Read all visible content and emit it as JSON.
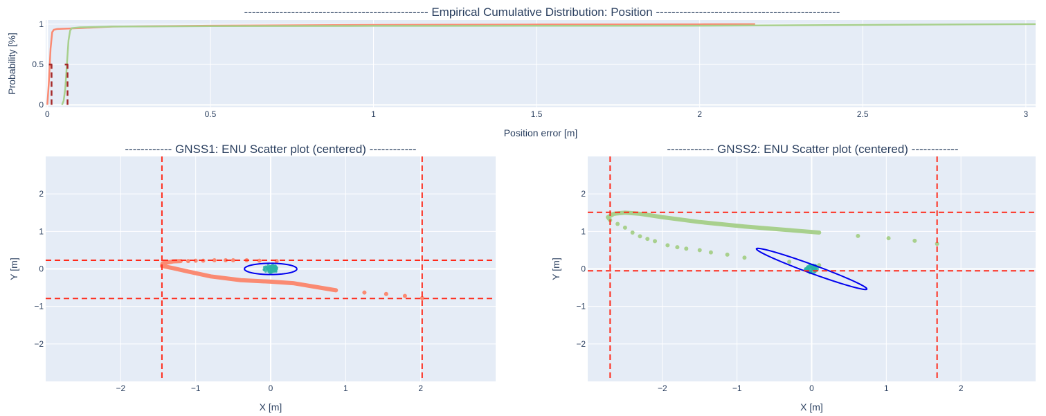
{
  "chart_data": [
    {
      "type": "line",
      "title": "-----------------------------------------------  Empirical Cumulative Distribution: Position  -----------------------------------------------",
      "xlabel": "Position error [m]",
      "ylabel": "Probability [%]",
      "xlim": [
        -0.005,
        3.03
      ],
      "ylim": [
        -0.03,
        1.05
      ],
      "xticks": [
        0,
        0.5,
        1,
        1.5,
        2,
        2.5,
        3
      ],
      "xtick_labels": [
        "0",
        "0.5",
        "1",
        "1.5",
        "2",
        "2.5",
        "3"
      ],
      "yticks": [
        0,
        0.5,
        1
      ],
      "ytick_labels": [
        "0",
        "0.5",
        "1"
      ],
      "series": [
        {
          "name": "GNSS1",
          "color": "#fa8a72",
          "x": [
            0,
            0.005,
            0.01,
            0.015,
            0.02,
            0.03,
            0.1,
            0.2,
            0.5,
            1.0,
            1.5,
            2.0,
            2.17
          ],
          "y": [
            0,
            0.3,
            0.7,
            0.9,
            0.93,
            0.94,
            0.95,
            0.97,
            0.98,
            0.99,
            0.995,
            0.998,
            1.0
          ]
        },
        {
          "name": "GNSS2",
          "color": "#a8d08d",
          "x": [
            0.045,
            0.05,
            0.055,
            0.06,
            0.065,
            0.07,
            0.075,
            0.1,
            0.2,
            0.5,
            1.0,
            2.0,
            2.5,
            3.03
          ],
          "y": [
            0,
            0.05,
            0.2,
            0.5,
            0.8,
            0.92,
            0.95,
            0.96,
            0.97,
            0.975,
            0.978,
            0.98,
            0.99,
            1.0
          ]
        }
      ],
      "medians": [
        {
          "x": 0.013,
          "color": "#a52a2a"
        },
        {
          "x": 0.062,
          "color": "#a52a2a"
        }
      ]
    },
    {
      "type": "scatter",
      "title": "------------ GNSS1: ENU Scatter plot (centered) ------------",
      "xlabel": "X [m]",
      "ylabel": "Y [m]",
      "xlim": [
        -3,
        3
      ],
      "ylim": [
        -3,
        3
      ],
      "xticks": [
        -2,
        -1,
        0,
        1,
        2
      ],
      "xtick_labels": [
        "−2",
        "−1",
        "0",
        "1",
        "2"
      ],
      "yticks": [
        -2,
        -1,
        0,
        1,
        2
      ],
      "ytick_labels": [
        "−2",
        "−1",
        "0",
        "1",
        "2"
      ],
      "color": "#fa8a72",
      "track": [
        [
          0.87,
          -0.57
        ],
        [
          0.6,
          -0.48
        ],
        [
          0.3,
          -0.38
        ],
        [
          0,
          -0.34
        ],
        [
          -0.4,
          -0.3
        ],
        [
          -0.8,
          -0.2
        ],
        [
          -1.1,
          -0.07
        ],
        [
          -1.3,
          0.02
        ],
        [
          -1.45,
          0.08
        ],
        [
          -1.44,
          0.15
        ],
        [
          -1.3,
          0.2
        ],
        [
          -1.2,
          0.21
        ]
      ],
      "sparse": [
        [
          -1.1,
          0.21
        ],
        [
          -1.0,
          0.22
        ],
        [
          -0.9,
          0.22
        ],
        [
          -0.75,
          0.23
        ],
        [
          -0.6,
          0.23
        ],
        [
          -0.5,
          0.23
        ],
        [
          -0.32,
          0.23
        ],
        [
          -0.15,
          0.22
        ],
        [
          0.08,
          0.21
        ],
        [
          1.25,
          -0.63
        ],
        [
          1.54,
          -0.67
        ],
        [
          1.79,
          -0.72
        ],
        [
          2.02,
          -0.78
        ]
      ],
      "vlines": [
        -1.45,
        2.02
      ],
      "hlines": [
        0.23,
        -0.79
      ],
      "ellipse": {
        "center": [
          0,
          0
        ],
        "u": [
          0.35,
          0
        ],
        "v": [
          0,
          0.15
        ]
      }
    },
    {
      "type": "scatter",
      "title": "------------ GNSS2: ENU Scatter plot (centered) ------------",
      "xlabel": "X [m]",
      "ylabel": "Y [m]",
      "xlim": [
        -3,
        3
      ],
      "ylim": [
        -3,
        3
      ],
      "xticks": [
        -2,
        -1,
        0,
        1,
        2
      ],
      "xtick_labels": [
        "−2",
        "−1",
        "0",
        "1",
        "2"
      ],
      "yticks": [
        -2,
        -1,
        0,
        1,
        2
      ],
      "ytick_labels": [
        "−2",
        "−1",
        "0",
        "1",
        "2"
      ],
      "color": "#a8d08d",
      "track": [
        [
          0.1,
          0.97
        ],
        [
          -0.4,
          1.05
        ],
        [
          -0.9,
          1.13
        ],
        [
          -1.5,
          1.25
        ],
        [
          -2.0,
          1.38
        ],
        [
          -2.3,
          1.47
        ],
        [
          -2.5,
          1.5
        ],
        [
          -2.65,
          1.47
        ],
        [
          -2.73,
          1.38
        ],
        [
          -2.7,
          1.3
        ]
      ],
      "sparse": [
        [
          -2.6,
          1.2
        ],
        [
          -2.5,
          1.1
        ],
        [
          -2.4,
          0.97
        ],
        [
          -2.3,
          0.87
        ],
        [
          -2.2,
          0.8
        ],
        [
          -2.1,
          0.74
        ],
        [
          -1.93,
          0.63
        ],
        [
          -1.8,
          0.58
        ],
        [
          -1.68,
          0.54
        ],
        [
          -1.5,
          0.5
        ],
        [
          -1.35,
          0.44
        ],
        [
          -1.13,
          0.38
        ],
        [
          -0.9,
          0.3
        ],
        [
          -0.3,
          0.19
        ],
        [
          0.1,
          0.1
        ],
        [
          0.62,
          0.88
        ],
        [
          1.03,
          0.82
        ],
        [
          1.38,
          0.75
        ],
        [
          1.68,
          0.67
        ]
      ],
      "vlines": [
        -2.7,
        1.68
      ],
      "hlines": [
        1.51,
        -0.05
      ],
      "ellipse": {
        "center": [
          0,
          0
        ],
        "u": [
          0.74,
          0.53
        ],
        "v": [
          0.024,
          -0.14
        ]
      }
    }
  ],
  "colors": {
    "cluster": "#2ab3a6",
    "ellipse": "#0000ee",
    "guide": "#ff2a1a",
    "grid": "#ffffff",
    "plot_bg": "#e5ecf6"
  }
}
